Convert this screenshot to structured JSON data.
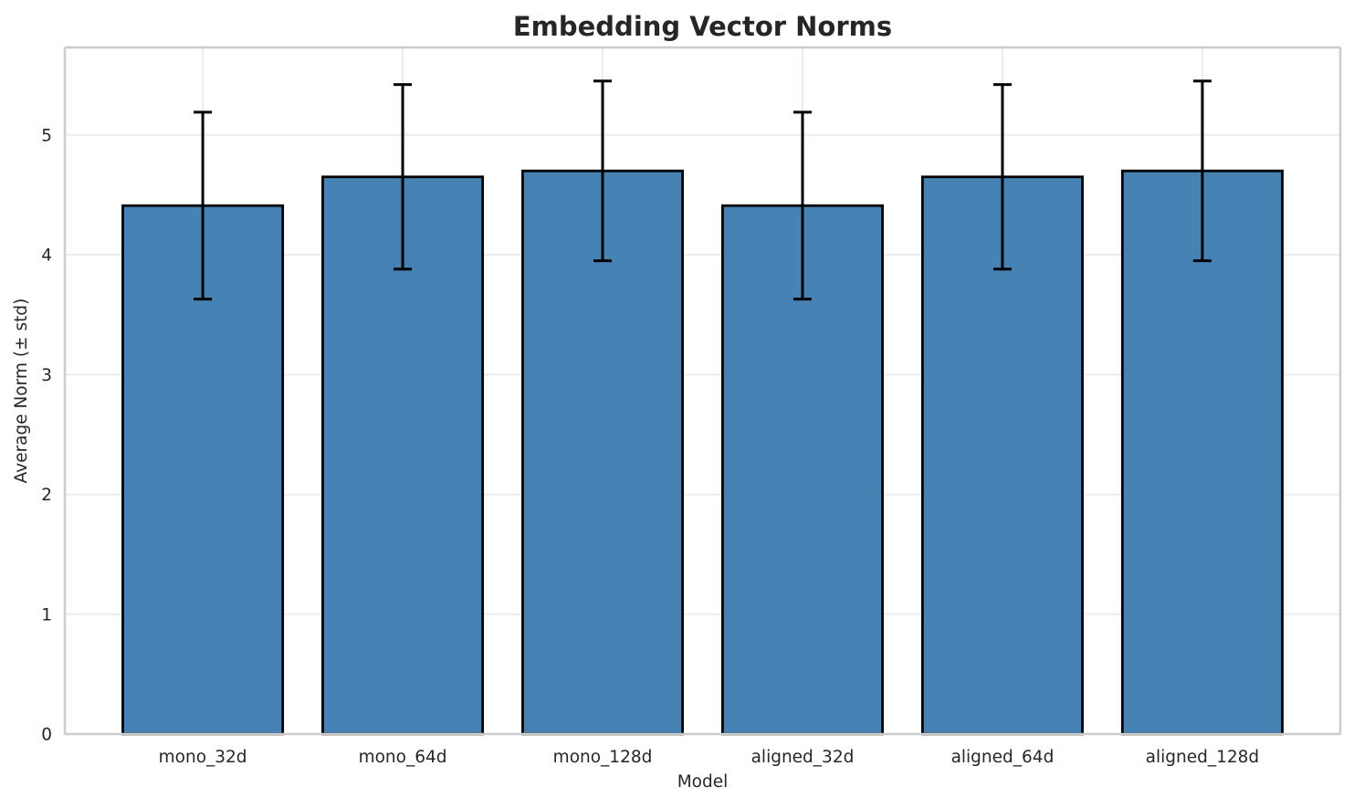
{
  "chart_data": {
    "type": "bar",
    "title": "Embedding Vector Norms",
    "xlabel": "Model",
    "ylabel": "Average Norm (± std)",
    "categories": [
      "mono_32d",
      "mono_64d",
      "mono_128d",
      "aligned_32d",
      "aligned_64d",
      "aligned_128d"
    ],
    "series": [
      {
        "name": "Average Norm",
        "values": [
          4.41,
          4.65,
          4.7,
          4.41,
          4.65,
          4.7
        ],
        "errors": [
          0.78,
          0.77,
          0.75,
          0.78,
          0.77,
          0.75
        ]
      }
    ],
    "yticks": [
      0,
      1,
      2,
      3,
      4,
      5
    ],
    "ylim": [
      0,
      5.73
    ],
    "xlim": [
      -0.69,
      5.69
    ],
    "bar_width": 0.8,
    "grid": true,
    "legend": false,
    "colors": {
      "bar_fill": "#4682b4",
      "bar_edge": "#000000",
      "error_bar": "#000000",
      "grid_line": "#ececec",
      "spine": "#cccccc",
      "text": "#262626",
      "background": "#ffffff"
    }
  }
}
